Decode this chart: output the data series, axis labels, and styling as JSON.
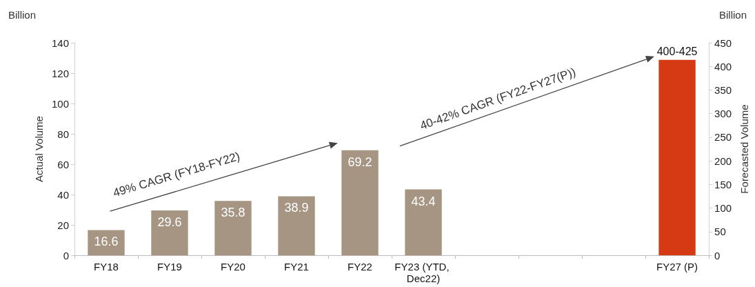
{
  "chart_data": {
    "type": "bar",
    "ylabel": "Actual Volume",
    "y2label": "Forecasted Volume",
    "categories": [
      "FY18",
      "FY19",
      "FY20",
      "FY21",
      "FY22",
      "FY23 (YTD, Dec22)",
      null,
      null,
      null,
      "FY27 (P)"
    ],
    "series": [
      {
        "color": "#a59582",
        "values": [
          16.6,
          29.6,
          35.8,
          38.9,
          69.2,
          43.4,
          null,
          null,
          null,
          null
        ],
        "value_labels": [
          "16.6",
          "29.6",
          "35.8",
          "38.9",
          "69.2",
          "43.4",
          null,
          null,
          null,
          null
        ]
      },
      {
        "color": "#d63a14",
        "axis": "y2",
        "values": [
          null,
          null,
          null,
          null,
          null,
          null,
          null,
          null,
          null,
          414
        ],
        "value_labels": [
          null,
          null,
          null,
          null,
          null,
          null,
          null,
          null,
          null,
          "400-425"
        ]
      }
    ],
    "ylim": [
      0,
      140
    ],
    "yticks": [
      0,
      20,
      40,
      60,
      80,
      100,
      120,
      140
    ],
    "y2lim": [
      0,
      450
    ],
    "y2ticks": [
      0,
      50,
      100,
      150,
      200,
      250,
      300,
      350,
      400,
      450
    ],
    "annotations": [
      "Billion",
      "Billion",
      "49% CAGR (FY18-FY22)",
      "40-42% CAGR (FY22-FY27(P))"
    ],
    "grid": false
  }
}
